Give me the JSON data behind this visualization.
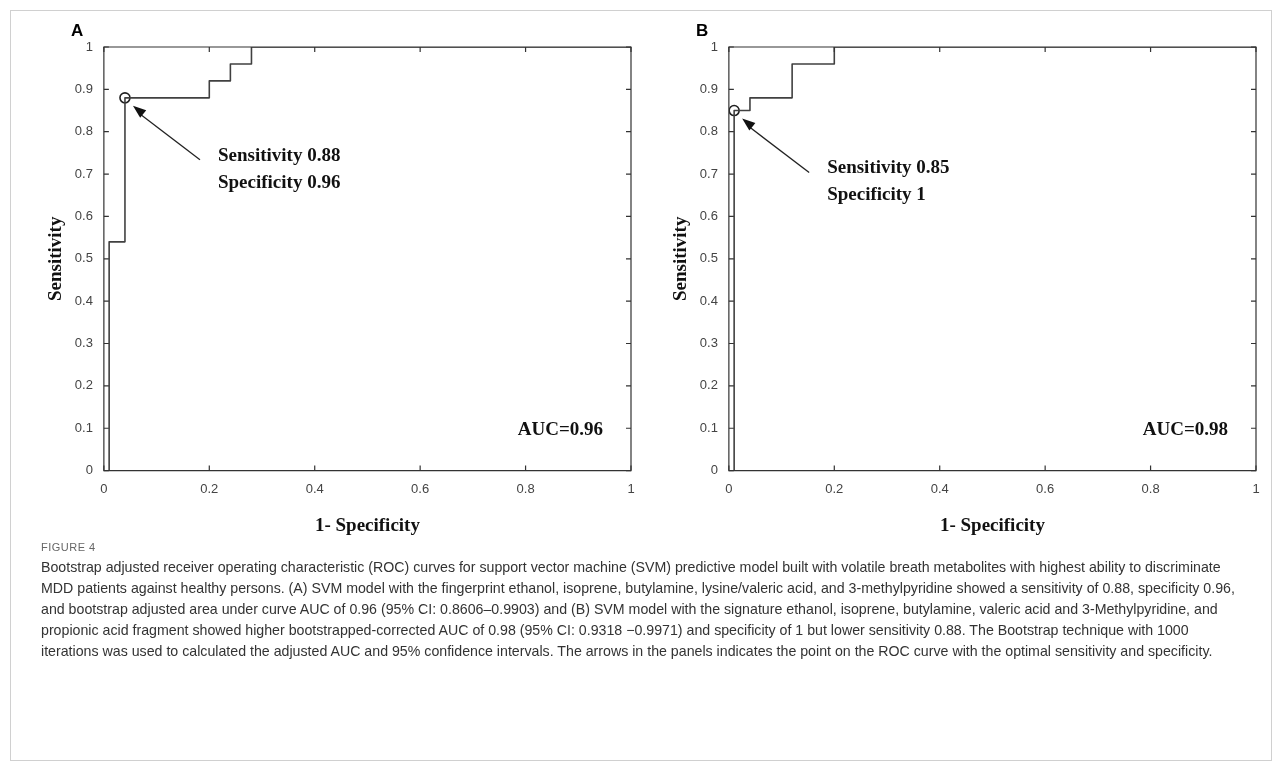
{
  "chart_data": [
    {
      "type": "line",
      "title": "A",
      "xlabel": "1- Specificity",
      "ylabel": "Sensitivity",
      "xlim": [
        0,
        1
      ],
      "ylim": [
        0,
        1
      ],
      "xticks": [
        0,
        0.2,
        0.4,
        0.6,
        0.8,
        1
      ],
      "yticks": [
        0,
        0.1,
        0.2,
        0.3,
        0.4,
        0.5,
        0.6,
        0.7,
        0.8,
        0.9,
        1
      ],
      "grid": false,
      "legend": false,
      "marker": "none",
      "line_style": "solid",
      "series": [
        {
          "color": "#404040",
          "x": [
            0.01,
            0.01,
            0.04,
            0.04,
            0.2,
            0.2,
            0.24,
            0.24,
            0.28,
            0.28,
            1
          ],
          "values": [
            0,
            0.54,
            0.54,
            0.88,
            0.88,
            0.92,
            0.92,
            0.96,
            0.96,
            1,
            1
          ]
        },
        {
          "type": "scatter",
          "marker": "circle",
          "color": "#202020",
          "x": [
            0.04
          ],
          "values": [
            0.88
          ]
        }
      ],
      "annotations": [
        "Sensitivity 0.88\nSpecificity 0.96",
        "AUC=0.96"
      ]
    },
    {
      "type": "line",
      "title": "B",
      "xlabel": "1- Specificity",
      "ylabel": "Sensitivity",
      "xlim": [
        0,
        1
      ],
      "ylim": [
        0,
        1
      ],
      "xticks": [
        0,
        0.2,
        0.4,
        0.6,
        0.8,
        1
      ],
      "yticks": [
        0,
        0.1,
        0.2,
        0.3,
        0.4,
        0.5,
        0.6,
        0.7,
        0.8,
        0.9,
        1
      ],
      "grid": false,
      "legend": false,
      "marker": "none",
      "line_style": "solid",
      "series": [
        {
          "color": "#404040",
          "x": [
            0.01,
            0.01,
            0.04,
            0.04,
            0.12,
            0.12,
            0.2,
            0.2,
            1
          ],
          "values": [
            0,
            0.85,
            0.85,
            0.88,
            0.88,
            0.96,
            0.96,
            1,
            1
          ]
        },
        {
          "type": "scatter",
          "marker": "circle",
          "color": "#202020",
          "x": [
            0.01
          ],
          "values": [
            0.85
          ]
        }
      ],
      "annotations": [
        "Sensitivity 0.85\nSpecificity 1",
        "AUC=0.98"
      ]
    },
    {
      "type": "other",
      "title": "FIGURE 4",
      "annotations": [
        "Bootstrap adjusted receiver operating characteristic (ROC) curves for support vector machine (SVM) predictive model built with volatile breath metabolites with highest ability to discriminate MDD patients against healthy persons. (A) SVM model with the fingerprint ethanol, isoprene, butylamine, lysine/valeric acid, and 3-methylpyridine showed a sensitivity of 0.88, specificity 0.96, and bootstrap adjusted area under curve AUC of 0.96 (95% CI: 0.8606–0.9903) and (B) SVM model with the signature ethanol, isoprene, butylamine, valeric acid and 3-Methylpyridine, and propionic acid fragment showed higher bootstrapped-corrected AUC of 0.98 (95% CI: 0.9318 −0.9971) and specificity of 1 but lower sensitivity 0.88. The Bootstrap technique with 1000 iterations was used to calculated the adjusted AUC and 95% confidence intervals. The arrows in the panels indicates the point on the ROC curve with the optimal sensitivity and specificity."
      ]
    }
  ]
}
